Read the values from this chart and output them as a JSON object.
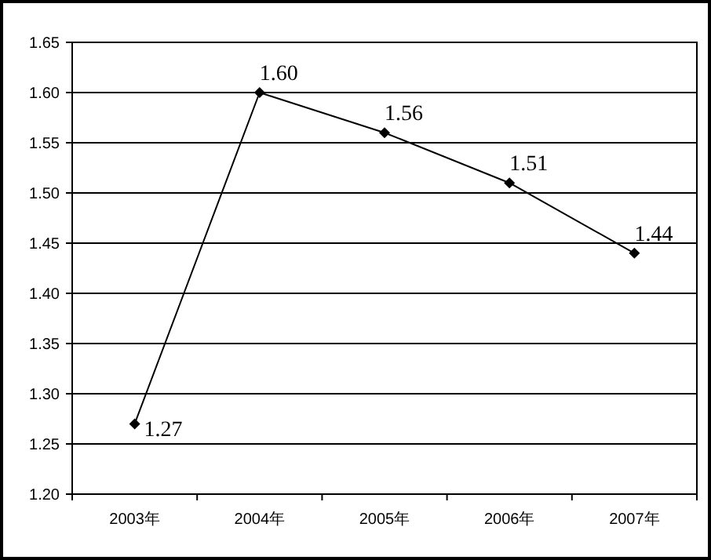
{
  "chart_data": {
    "type": "line",
    "categories": [
      "2003年",
      "2004年",
      "2005年",
      "2006年",
      "2007年"
    ],
    "series": [
      {
        "color": "#000000",
        "values": [
          1.27,
          1.6,
          1.56,
          1.51,
          1.44
        ],
        "value_labels": [
          "1.27",
          "1.60",
          "1.56",
          "1.51",
          "1.44"
        ]
      }
    ],
    "ylim": [
      1.2,
      1.65
    ],
    "yticks": [
      {
        "value": 1.2,
        "label": "1.20"
      },
      {
        "value": 1.25,
        "label": "1.25"
      },
      {
        "value": 1.3,
        "label": "1.30"
      },
      {
        "value": 1.35,
        "label": "1.35"
      },
      {
        "value": 1.4,
        "label": "1.40"
      },
      {
        "value": 1.45,
        "label": "1.45"
      },
      {
        "value": 1.5,
        "label": "1.50"
      },
      {
        "value": 1.55,
        "label": "1.55"
      },
      {
        "value": 1.6,
        "label": "1.60"
      },
      {
        "value": 1.65,
        "label": "1.65"
      }
    ],
    "grid": "y",
    "marker": "diamond",
    "line_style": "solid"
  }
}
